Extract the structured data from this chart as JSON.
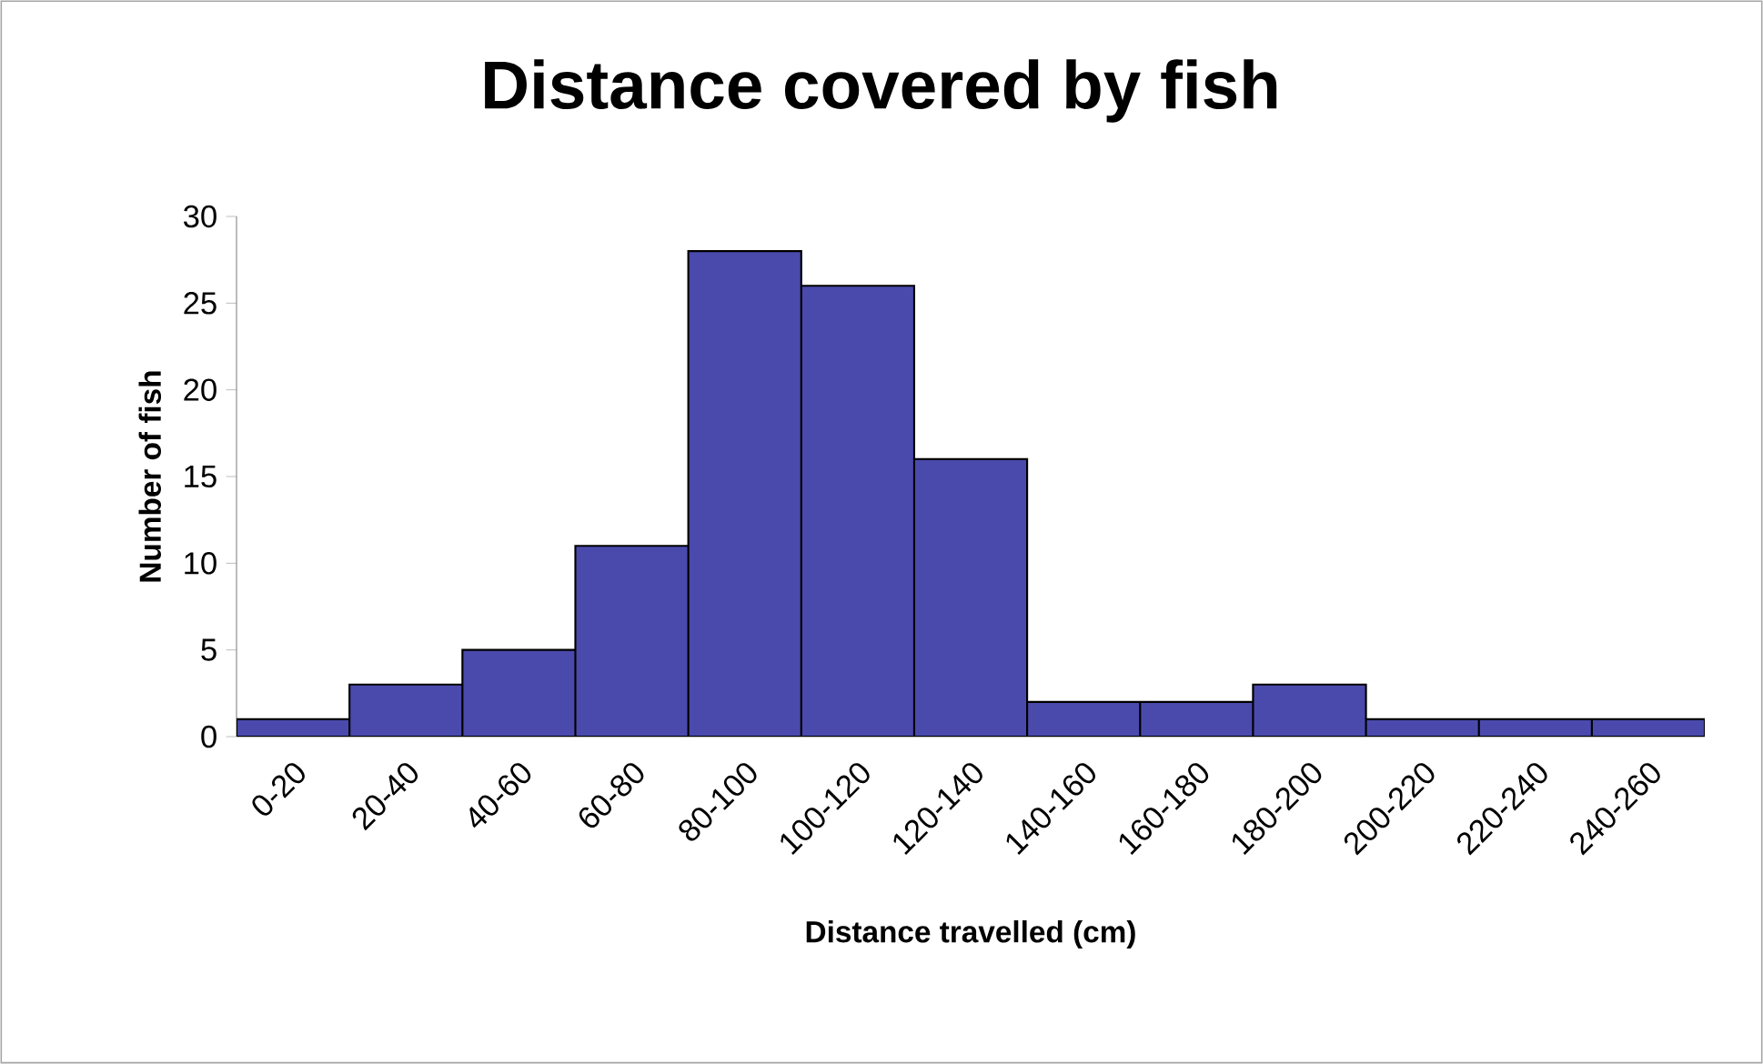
{
  "chart_data": {
    "type": "bar",
    "title": "Distance covered by fish",
    "xlabel": "Distance travelled (cm)",
    "ylabel": "Number of fish",
    "categories": [
      "0-20",
      "20-40",
      "40-60",
      "60-80",
      "80-100",
      "100-120",
      "120-140",
      "140-160",
      "160-180",
      "180-200",
      "200-220",
      "220-240",
      "240-260"
    ],
    "values": [
      1,
      3,
      5,
      11,
      28,
      26,
      16,
      2,
      2,
      3,
      1,
      1,
      1
    ],
    "color": "#4a4aad",
    "ylim": [
      0,
      30
    ],
    "yticks": [
      0,
      5,
      10,
      15,
      20,
      25,
      30
    ],
    "grid": false
  }
}
